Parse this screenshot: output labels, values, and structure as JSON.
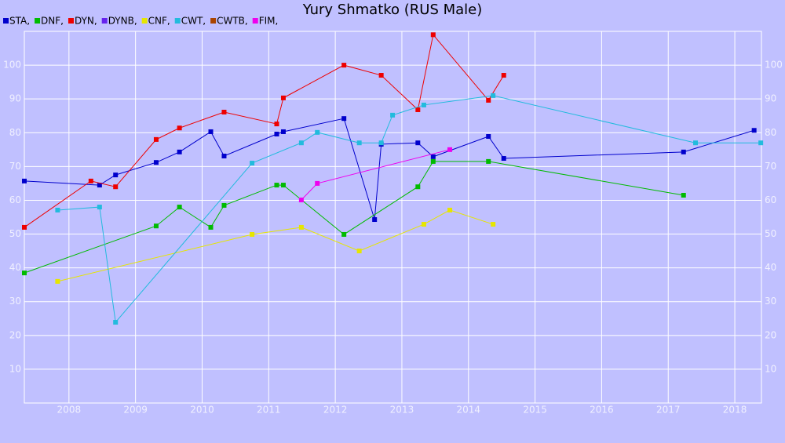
{
  "chart_data": {
    "type": "line",
    "title": "Yury Shmatko (RUS Male)",
    "xlim": [
      2007.33,
      2018.4
    ],
    "xticks": [
      2008,
      2009,
      2010,
      2011,
      2012,
      2013,
      2014,
      2015,
      2016,
      2017,
      2018
    ],
    "ylim": [
      0,
      110
    ],
    "yticks": [
      10,
      20,
      30,
      40,
      50,
      60,
      70,
      80,
      90,
      100
    ],
    "grid": true,
    "series": [
      {
        "name": "STA,",
        "color": "#0000cc",
        "x": [
          2007.33,
          2008.46,
          2008.7,
          2009.31,
          2009.66,
          2010.13,
          2010.33,
          2011.12,
          2011.22,
          2012.13,
          2012.59,
          2012.69,
          2013.24,
          2013.47,
          2014.3,
          2014.53,
          2017.23,
          2018.29
        ],
        "values": [
          65.7,
          64.5,
          67.5,
          71.2,
          74.3,
          80.3,
          73.1,
          79.6,
          80.3,
          84.2,
          54.3,
          76.6,
          77.0,
          72.9,
          78.9,
          72.4,
          74.3,
          80.7
        ]
      },
      {
        "name": "DNF,",
        "color": "#00bb00",
        "x": [
          2007.33,
          2009.31,
          2009.66,
          2010.13,
          2010.33,
          2011.12,
          2011.22,
          2012.13,
          2013.24,
          2013.47,
          2014.3,
          2017.23
        ],
        "values": [
          38.5,
          52.4,
          58.0,
          52.0,
          58.5,
          64.5,
          64.5,
          49.9,
          64.0,
          71.5,
          71.5,
          61.5
        ]
      },
      {
        "name": "DYN,",
        "color": "#ee0000",
        "x": [
          2007.33,
          2008.33,
          2008.7,
          2009.31,
          2009.66,
          2010.33,
          2011.12,
          2011.22,
          2012.13,
          2012.69,
          2013.24,
          2013.47,
          2014.3,
          2014.53
        ],
        "values": [
          52.0,
          65.7,
          64.0,
          78.0,
          81.4,
          86.1,
          82.6,
          90.3,
          100.0,
          97.0,
          86.8,
          109.0,
          89.6,
          97.0
        ]
      },
      {
        "name": "DYNB,",
        "color": "#6622ee",
        "x": [],
        "values": []
      },
      {
        "name": "CNF,",
        "color": "#e6e600",
        "x": [
          2007.83,
          2010.75,
          2011.49,
          2012.36,
          2013.33,
          2013.72,
          2014.37
        ],
        "values": [
          36.0,
          49.9,
          52.0,
          45.0,
          52.9,
          57.1,
          52.9
        ]
      },
      {
        "name": "CWT,",
        "color": "#22bbdd",
        "x": [
          2007.83,
          2008.46,
          2008.7,
          2010.75,
          2011.49,
          2011.73,
          2012.36,
          2012.69,
          2012.86,
          2013.33,
          2014.37,
          2017.41,
          2018.39
        ],
        "values": [
          57.1,
          58.0,
          23.9,
          71.0,
          77.0,
          80.1,
          77.0,
          77.0,
          85.2,
          88.2,
          91.0,
          77.0,
          77.0
        ]
      },
      {
        "name": "CWTB,",
        "color": "#aa4400",
        "x": [],
        "values": []
      },
      {
        "name": "FIM,",
        "color": "#ee00ee",
        "x": [
          2011.49,
          2011.73,
          2013.72
        ],
        "values": [
          60.1,
          65.0,
          75.0
        ]
      }
    ]
  }
}
